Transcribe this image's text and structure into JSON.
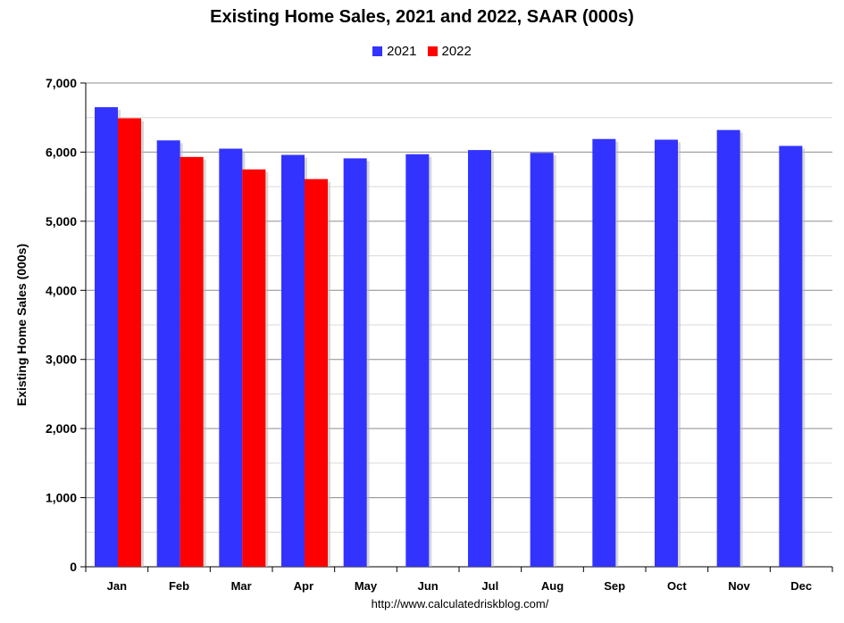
{
  "chart_data": {
    "type": "bar",
    "title": "Existing Home Sales,  2021 and 2022, SAAR (000s)",
    "ylabel": "Existing Home Sales (000s)",
    "xlabel": "",
    "source_text": "http://www.calculatedriskblog.com/",
    "categories": [
      "Jan",
      "Feb",
      "Mar",
      "Apr",
      "May",
      "Jun",
      "Jul",
      "Aug",
      "Sep",
      "Oct",
      "Nov",
      "Dec"
    ],
    "ylim": [
      0,
      7000
    ],
    "ytick_values": [
      0,
      1000,
      2000,
      3000,
      4000,
      5000,
      6000,
      7000
    ],
    "ytick_labels": [
      "0",
      "1,000",
      "2,000",
      "3,000",
      "4,000",
      "5,000",
      "6,000",
      "7,000"
    ],
    "grid": true,
    "legend_position": "top-center",
    "series": [
      {
        "name": "2021",
        "color": "#3333ff",
        "values": [
          6650,
          6170,
          6050,
          5960,
          5910,
          5970,
          6030,
          5990,
          6190,
          6180,
          6320,
          6090
        ]
      },
      {
        "name": "2022",
        "color": "#ff0000",
        "values": [
          6490,
          5930,
          5750,
          5610,
          null,
          null,
          null,
          null,
          null,
          null,
          null,
          null
        ]
      }
    ]
  }
}
